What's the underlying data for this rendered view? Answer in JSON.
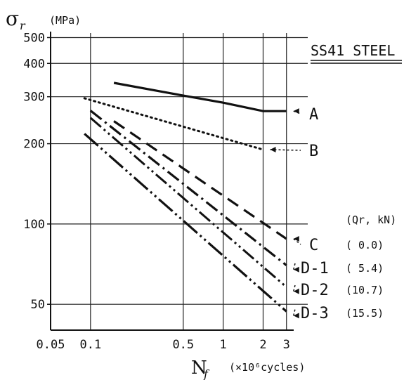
{
  "chart_data": {
    "type": "line",
    "y_symbol": "σ",
    "y_symbol_sub": "r",
    "y_unit": "(MPa)",
    "x_symbol": "N",
    "x_symbol_sub": "f",
    "x_unit": "(×10⁶cycles)",
    "material_label": "SS41 STEEL",
    "legend_title": "(Qr, kN)",
    "x_scale": "log",
    "y_scale": "log",
    "xlim": [
      0.05,
      3.4
    ],
    "ylim": [
      40,
      520
    ],
    "grid": true,
    "x_ticks": [
      {
        "value": 0.05,
        "label": "0.05"
      },
      {
        "value": 0.1,
        "label": "0.1"
      },
      {
        "value": 0.5,
        "label": "0.5"
      },
      {
        "value": 1,
        "label": "1"
      },
      {
        "value": 2,
        "label": "2"
      },
      {
        "value": 3,
        "label": "3"
      }
    ],
    "x_grid": [
      0.1,
      0.5,
      1,
      2,
      3
    ],
    "y_ticks": [
      {
        "value": 50,
        "label": "50"
      },
      {
        "value": 100,
        "label": "100"
      },
      {
        "value": 200,
        "label": "200"
      },
      {
        "value": 300,
        "label": "300"
      },
      {
        "value": 400,
        "label": "400"
      },
      {
        "value": 500,
        "label": "500"
      }
    ],
    "y_grid": [
      50,
      100,
      200,
      300,
      400,
      500
    ],
    "series": [
      {
        "name": "A",
        "value_label": "",
        "style": "solid",
        "x": [
          0.15,
          0.5,
          1,
          2,
          3
        ],
        "y": [
          338,
          303,
          285,
          265,
          265
        ]
      },
      {
        "name": "B",
        "value_label": "",
        "style": "dotted",
        "x": [
          0.09,
          2
        ],
        "y": [
          296,
          190
        ]
      },
      {
        "name": "C",
        "value_label": "( 0.0)",
        "style": "dashed",
        "x": [
          0.15,
          3
        ],
        "y": [
          243,
          88
        ]
      },
      {
        "name": "D-1",
        "value_label": "( 5.4)",
        "style": "dashdot",
        "x": [
          0.1,
          3
        ],
        "y": [
          266,
          70
        ]
      },
      {
        "name": "D-2",
        "value_label": "(10.7)",
        "style": "dashdotdot",
        "x": [
          0.1,
          3
        ],
        "y": [
          250,
          58
        ]
      },
      {
        "name": "D-3",
        "value_label": "(15.5)",
        "style": "dashdotdot2",
        "x": [
          0.09,
          3
        ],
        "y": [
          218,
          47
        ]
      }
    ]
  }
}
